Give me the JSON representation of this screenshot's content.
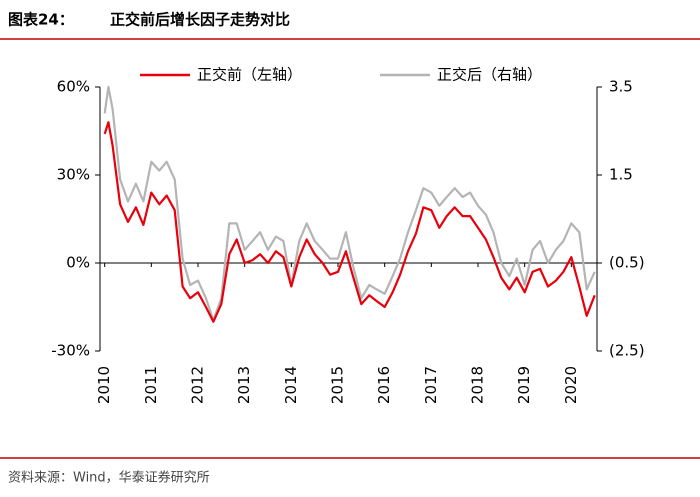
{
  "chart_data": {
    "type": "line",
    "title_label": "图表24：",
    "title": "正交前后增长因子走势对比",
    "source": "资料来源：Wind，华泰证券研究所",
    "x": [
      2010,
      2010.08,
      2010.17,
      2010.33,
      2010.5,
      2010.67,
      2010.83,
      2011,
      2011.17,
      2011.33,
      2011.5,
      2011.67,
      2011.83,
      2012,
      2012.17,
      2012.33,
      2012.5,
      2012.67,
      2012.83,
      2013,
      2013.17,
      2013.33,
      2013.5,
      2013.67,
      2013.83,
      2014,
      2014.17,
      2014.33,
      2014.5,
      2014.67,
      2014.83,
      2015,
      2015.17,
      2015.33,
      2015.5,
      2015.67,
      2015.83,
      2016,
      2016.17,
      2016.33,
      2016.5,
      2016.67,
      2016.83,
      2017,
      2017.17,
      2017.33,
      2017.5,
      2017.67,
      2017.83,
      2018,
      2018.17,
      2018.33,
      2018.5,
      2018.67,
      2018.83,
      2019,
      2019.17,
      2019.33,
      2019.5,
      2019.67,
      2019.83,
      2020,
      2020.17,
      2020.33,
      2020.5
    ],
    "xlim": [
      2009.9,
      2020.55
    ],
    "xticks": [
      2010,
      2011,
      2012,
      2013,
      2014,
      2015,
      2016,
      2017,
      2018,
      2019,
      2020
    ],
    "ylim": [
      -30,
      60
    ],
    "yticks": [
      {
        "value": -30,
        "label": "-30%"
      },
      {
        "value": 0,
        "label": "0%"
      },
      {
        "value": 30,
        "label": "30%"
      },
      {
        "value": 60,
        "label": "60%"
      }
    ],
    "y2lim": [
      -2.5,
      3.5
    ],
    "y2ticks": [
      {
        "value": -2.5,
        "label": "(2.5)"
      },
      {
        "value": -0.5,
        "label": "(0.5)"
      },
      1.5,
      3.5
    ],
    "series": [
      {
        "name": "正交前（左轴）",
        "color": "#e8000b",
        "axis": "y",
        "values": [
          44,
          48,
          40,
          20,
          14,
          19,
          13,
          24,
          20,
          23,
          18,
          -8,
          -12,
          -10,
          -15,
          -20,
          -14,
          3,
          8,
          0,
          1,
          3,
          0,
          4,
          2,
          -8,
          2,
          8,
          3,
          0,
          -4,
          -3,
          4,
          -5,
          -14,
          -11,
          -13,
          -15,
          -10,
          -4,
          4,
          10,
          19,
          18,
          12,
          16,
          19,
          16,
          16,
          12,
          8,
          2,
          -5,
          -9,
          -5,
          -10,
          -3,
          -2,
          -8,
          -6,
          -3,
          2,
          -8,
          -18,
          -11
        ]
      },
      {
        "name": "正交后（右轴）",
        "color": "#b4b4b4",
        "axis": "y2",
        "values": [
          2.9,
          3.5,
          3.0,
          1.4,
          0.9,
          1.3,
          0.9,
          1.8,
          1.6,
          1.8,
          1.4,
          -0.4,
          -1.0,
          -0.9,
          -1.3,
          -1.8,
          -1.3,
          0.4,
          0.4,
          -0.2,
          0,
          0.2,
          -0.2,
          0.1,
          0,
          -1.0,
          0,
          0.4,
          0,
          -0.2,
          -0.4,
          -0.4,
          0.2,
          -0.6,
          -1.3,
          -1.0,
          -1.1,
          -1.2,
          -0.8,
          -0.4,
          0.2,
          0.7,
          1.2,
          1.1,
          0.8,
          1.0,
          1.2,
          1.0,
          1.1,
          0.8,
          0.6,
          0.2,
          -0.5,
          -0.8,
          -0.4,
          -1.0,
          -0.2,
          0,
          -0.5,
          -0.2,
          0,
          0.4,
          0.2,
          -1.1,
          -0.7
        ]
      }
    ]
  }
}
